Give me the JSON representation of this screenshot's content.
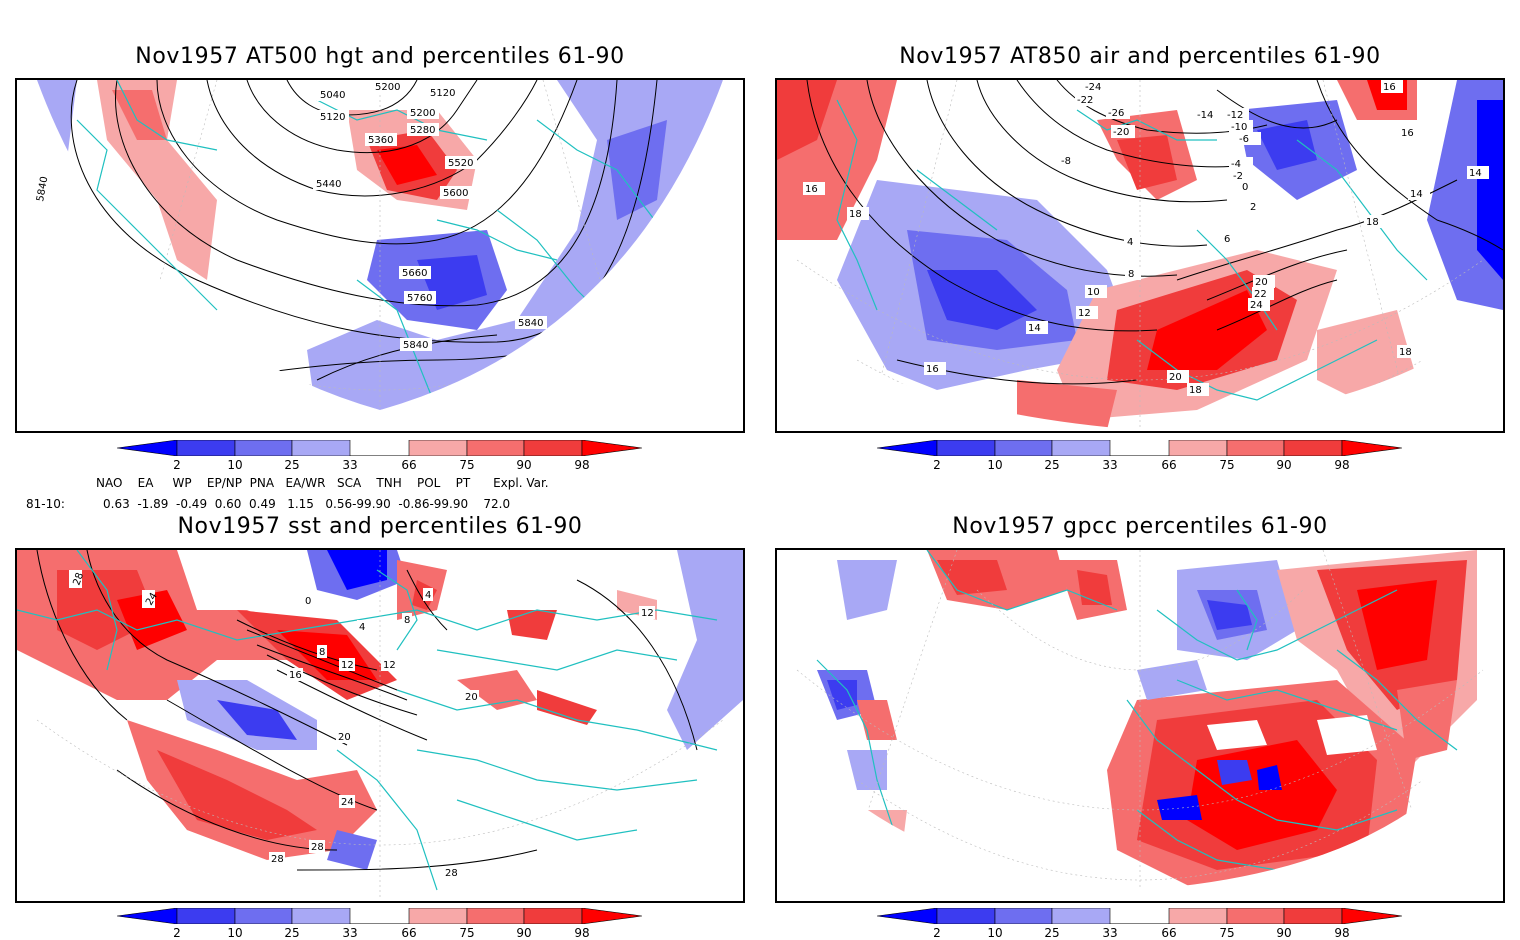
{
  "panels": [
    {
      "title": "Nov1957 AT500 hgt and percentiles 61-90",
      "contour_labels": [
        "5040",
        "5200",
        "5120",
        "5120",
        "5200",
        "5280",
        "5360",
        "5440",
        "5520",
        "5600",
        "5660",
        "5760",
        "5840",
        "5840",
        "5840"
      ]
    },
    {
      "title": "Nov1957 AT850 air and percentiles 61-90",
      "contour_labels": [
        "-24",
        "-22",
        "-26",
        "-20",
        "-14",
        "-12",
        "-10",
        "-8",
        "-6",
        "-4",
        "-2",
        "0",
        "2",
        "4",
        "6",
        "8",
        "10",
        "12",
        "14",
        "16",
        "16",
        "18",
        "18",
        "20",
        "22",
        "24",
        "18",
        "16",
        "14",
        "14",
        "16",
        "18",
        "20"
      ]
    },
    {
      "title": "Nov1957 sst and percentiles 61-90",
      "contour_labels": [
        "28",
        "24",
        "0",
        "4",
        "4",
        "8",
        "8",
        "12",
        "12",
        "16",
        "20",
        "20",
        "24",
        "28",
        "28",
        "28",
        "12"
      ]
    },
    {
      "title": "Nov1957 gpcc percentiles 61-90",
      "contour_labels": []
    }
  ],
  "colorbar": {
    "ticks": [
      "2",
      "10",
      "25",
      "33",
      "66",
      "75",
      "90",
      "98"
    ],
    "colors": {
      "blue_dark": "#0000ff",
      "blue_mid": "#3c3cf0",
      "blue_light": "#6e6ef0",
      "blue_pale": "#a8a8f5",
      "red_pale": "#f7a8a8",
      "red_light": "#f56e6e",
      "red_mid": "#f03c3c",
      "red_dark": "#ff0000"
    }
  },
  "indices": {
    "header": "NAO    EA     WP    EP/NP  PNA   EA/WR   SCA    TNH    POL    PT      Expl. Var.",
    "row_label": "81-10:",
    "row_values": "0.63  -1.89  -0.49  0.60  0.49   1.15   0.56-99.90  -0.86-99.90    72.0"
  }
}
